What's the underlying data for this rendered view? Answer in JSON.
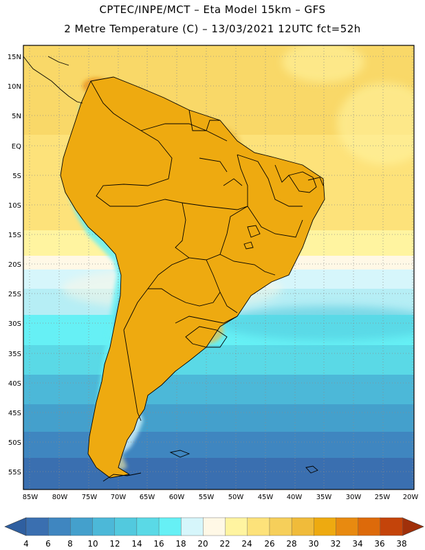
{
  "header": {
    "line1": "CPTEC/INPE/MCT –  Eta Model 15km – GFS",
    "line2": "2 Metre Temperature (C) – 13/03/2021 12UTC fct=52h"
  },
  "map": {
    "lat_labels": [
      "15N",
      "10N",
      "5N",
      "EQ",
      "5S",
      "10S",
      "15S",
      "20S",
      "25S",
      "30S",
      "35S",
      "40S",
      "45S",
      "50S",
      "55S"
    ],
    "lon_labels": [
      "85W",
      "80W",
      "75W",
      "70W",
      "65W",
      "60W",
      "55W",
      "50W",
      "45W",
      "40W",
      "35W",
      "30W",
      "25W",
      "20W"
    ]
  },
  "colorbar": {
    "labels": [
      "4",
      "6",
      "8",
      "10",
      "12",
      "14",
      "16",
      "18",
      "20",
      "22",
      "24",
      "26",
      "28",
      "30",
      "32",
      "34",
      "36",
      "38"
    ],
    "colors": [
      "#3a6fb0",
      "#3f86c0",
      "#44a0cc",
      "#4cb8d8",
      "#52c9de",
      "#5ad9e6",
      "#66f0f5",
      "#d6f6fb",
      "#fff8e6",
      "#fff4a0",
      "#fde27a",
      "#f6cf5a",
      "#f0bb3a",
      "#eeaa10",
      "#e88a10",
      "#dd6a0a",
      "#c4440a"
    ],
    "low_color": "#2f5fa0",
    "high_color": "#a0300a"
  }
}
